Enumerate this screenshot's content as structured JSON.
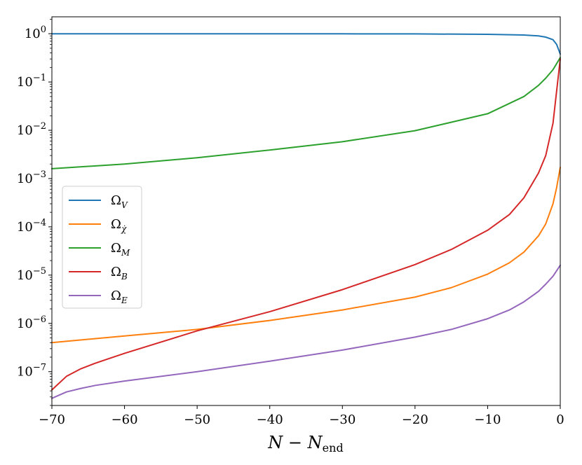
{
  "chart_data": {
    "type": "line",
    "title": "",
    "xlabel": "N − N_end",
    "xlabel_parts": {
      "main": "N − N",
      "sub": "end"
    },
    "ylabel": "",
    "xlim": [
      -70,
      0
    ],
    "ylim_log10": [
      -7.7,
      0.35
    ],
    "yscale": "log",
    "grid": false,
    "legend_position": "center-left",
    "x_ticks": [
      {
        "value": -70,
        "label": "−70"
      },
      {
        "value": -60,
        "label": "−60"
      },
      {
        "value": -50,
        "label": "−50"
      },
      {
        "value": -40,
        "label": "−40"
      },
      {
        "value": -30,
        "label": "−30"
      },
      {
        "value": -20,
        "label": "−20"
      },
      {
        "value": -10,
        "label": "−10"
      },
      {
        "value": 0,
        "label": "0"
      }
    ],
    "y_ticks": [
      {
        "value": 1,
        "base": "10",
        "exp": "0"
      },
      {
        "value": 0.1,
        "base": "10",
        "exp": "−1"
      },
      {
        "value": 0.01,
        "base": "10",
        "exp": "−2"
      },
      {
        "value": 0.001,
        "base": "10",
        "exp": "−3"
      },
      {
        "value": 0.0001,
        "base": "10",
        "exp": "−4"
      },
      {
        "value": 1e-05,
        "base": "10",
        "exp": "−5"
      },
      {
        "value": 1e-06,
        "base": "10",
        "exp": "−6"
      },
      {
        "value": 1e-07,
        "base": "10",
        "exp": "−7"
      }
    ],
    "series": [
      {
        "name": "Ω_V",
        "name_main": "Ω",
        "name_sub": "V",
        "color": "#1f77b4",
        "x": [
          -70,
          -60,
          -50,
          -40,
          -30,
          -20,
          -10,
          -5,
          -3,
          -2,
          -1,
          -0.5,
          0
        ],
        "y": [
          0.998,
          0.998,
          0.997,
          0.996,
          0.994,
          0.99,
          0.97,
          0.94,
          0.9,
          0.85,
          0.75,
          0.6,
          0.38
        ]
      },
      {
        "name": "Ω_χ̇",
        "name_main": "Ω",
        "name_sub": "χ̇",
        "color": "#ff7f0e",
        "x": [
          -70,
          -60,
          -50,
          -40,
          -30,
          -20,
          -15,
          -10,
          -7,
          -5,
          -3,
          -2,
          -1,
          -0.5,
          0
        ],
        "y": [
          4e-07,
          5.5e-07,
          7.5e-07,
          1.15e-06,
          1.9e-06,
          3.5e-06,
          5.5e-06,
          1.05e-05,
          1.8e-05,
          3e-05,
          6.5e-05,
          0.000115,
          0.0003,
          0.00065,
          0.0017
        ]
      },
      {
        "name": "Ω_M",
        "name_main": "Ω",
        "name_sub": "M",
        "color": "#2ca02c",
        "x": [
          -70,
          -60,
          -50,
          -40,
          -30,
          -20,
          -10,
          -5,
          -3,
          -2,
          -1,
          0
        ],
        "y": [
          0.0016,
          0.002,
          0.0027,
          0.0039,
          0.0058,
          0.0098,
          0.022,
          0.05,
          0.085,
          0.12,
          0.18,
          0.32
        ]
      },
      {
        "name": "Ω_B",
        "name_main": "Ω",
        "name_sub": "B",
        "color": "#d62728",
        "x": [
          -70,
          -68,
          -66,
          -64,
          -60,
          -50,
          -40,
          -30,
          -20,
          -15,
          -10,
          -7,
          -5,
          -3,
          -2,
          -1,
          0
        ],
        "y": [
          4.2e-08,
          8e-08,
          1.15e-07,
          1.5e-07,
          2.4e-07,
          7e-07,
          1.75e-06,
          5e-06,
          1.65e-05,
          3.4e-05,
          8.5e-05,
          0.00018,
          0.0004,
          0.0013,
          0.003,
          0.014,
          0.3
        ]
      },
      {
        "name": "Ω_E",
        "name_main": "Ω",
        "name_sub": "E",
        "color": "#9467bd",
        "x": [
          -70,
          -68,
          -66,
          -64,
          -60,
          -50,
          -40,
          -30,
          -20,
          -15,
          -10,
          -7,
          -5,
          -3,
          -2,
          -1,
          0
        ],
        "y": [
          2.8e-08,
          3.8e-08,
          4.5e-08,
          5.2e-08,
          6.4e-08,
          1e-07,
          1.65e-07,
          2.8e-07,
          5.2e-07,
          7.5e-07,
          1.25e-06,
          1.9e-06,
          2.8e-06,
          4.6e-06,
          6.5e-06,
          9.5e-06,
          1.6e-05
        ]
      }
    ]
  }
}
